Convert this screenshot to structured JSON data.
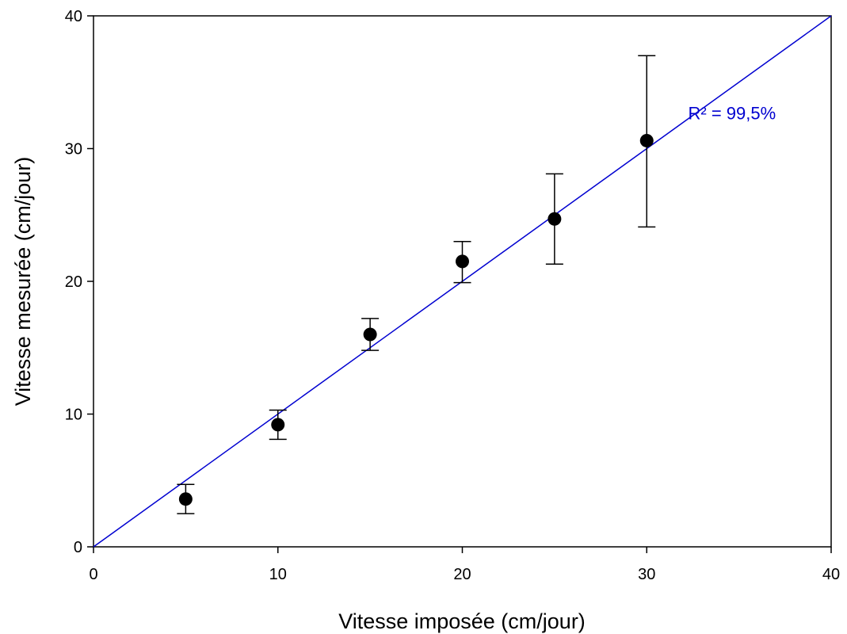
{
  "chart_data": {
    "type": "scatter",
    "xlabel": "Vitesse imposée (cm/jour)",
    "ylabel": "Vitesse mesurée (cm/jour)",
    "xlim": [
      0,
      40
    ],
    "ylim": [
      0,
      40
    ],
    "xticks": [
      "0",
      "10",
      "20",
      "30",
      "40"
    ],
    "yticks": [
      "0",
      "10",
      "20",
      "30",
      "40"
    ],
    "grid": false,
    "legend": "none",
    "points": [
      {
        "x": 5,
        "y": 3.6,
        "err_low": 2.5,
        "err_high": 4.7
      },
      {
        "x": 10,
        "y": 9.2,
        "err_low": 8.1,
        "err_high": 10.3
      },
      {
        "x": 15,
        "y": 16.0,
        "err_low": 14.8,
        "err_high": 17.2
      },
      {
        "x": 20,
        "y": 21.5,
        "err_low": 19.9,
        "err_high": 23.0
      },
      {
        "x": 25,
        "y": 24.7,
        "err_low": 21.3,
        "err_high": 28.1
      },
      {
        "x": 30,
        "y": 30.6,
        "err_low": 24.1,
        "err_high": 37.0
      }
    ],
    "reference_line": {
      "x": [
        0,
        40
      ],
      "y": [
        0,
        40
      ],
      "color": "#0000d0"
    },
    "annotation": {
      "text": "R² = 99,5%",
      "x": 37,
      "y": 32.2,
      "color": "#0000d0"
    },
    "point_color": "#000000"
  }
}
